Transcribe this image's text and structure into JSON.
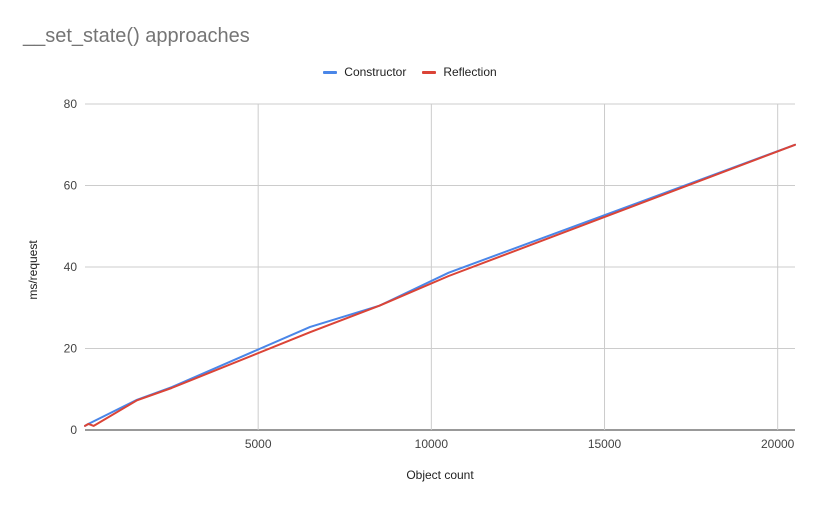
{
  "chart_data": {
    "type": "line",
    "title": "__set_state() approaches",
    "xlabel": "Object count",
    "ylabel": "ms/request",
    "xlim": [
      0,
      20500
    ],
    "ylim": [
      0,
      80
    ],
    "x_ticks": [
      5000,
      10000,
      15000,
      20000
    ],
    "y_ticks": [
      0,
      20,
      40,
      60,
      80
    ],
    "grid": true,
    "legend_position": "top",
    "series": [
      {
        "name": "Constructor",
        "color": "#4a86e8",
        "x": [
          0,
          100,
          1500,
          2500,
          6500,
          8500,
          10500,
          20500
        ],
        "y": [
          1.0,
          1.5,
          7.4,
          10.5,
          25.3,
          30.5,
          38.6,
          70.0
        ]
      },
      {
        "name": "Reflection",
        "color": "#db4437",
        "x": [
          0,
          100,
          250,
          1500,
          2500,
          6500,
          8500,
          10500,
          20500
        ],
        "y": [
          1.0,
          1.5,
          1.0,
          7.3,
          10.3,
          24.0,
          30.5,
          37.8,
          70.0
        ]
      }
    ]
  }
}
